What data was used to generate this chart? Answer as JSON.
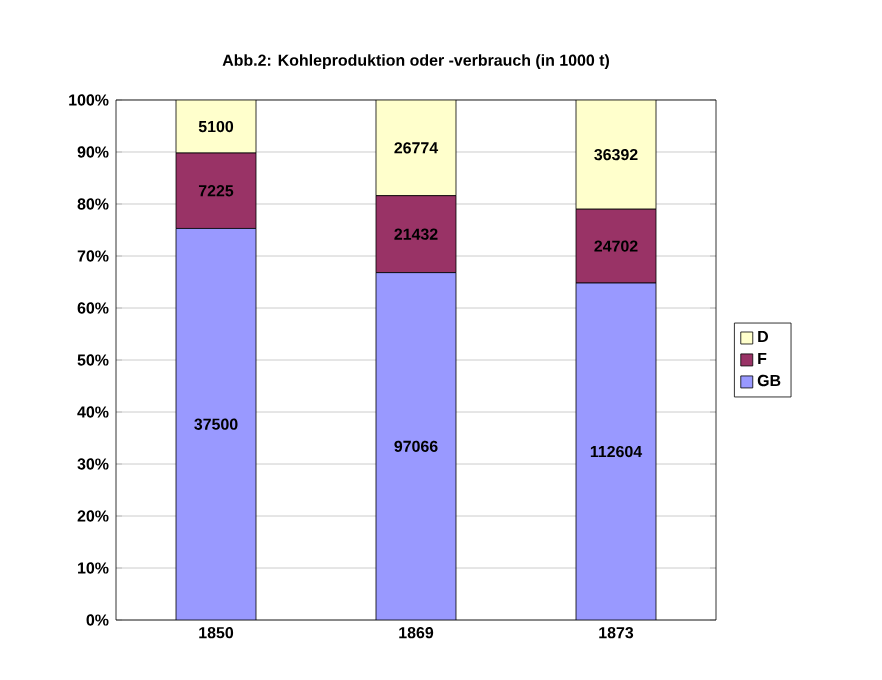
{
  "chart_data": {
    "type": "bar",
    "stacked": true,
    "title": "Abb.2: Kohleproduktion oder -verbrauch (in 1000 t)",
    "categories": [
      "1850",
      "1869",
      "1873"
    ],
    "series": [
      {
        "name": "GB",
        "color": "#9999ff",
        "values": [
          75.3,
          66.8,
          64.8
        ]
      },
      {
        "name": "F",
        "color": "#993366",
        "values": [
          14.5,
          14.8,
          14.2
        ]
      },
      {
        "name": "D",
        "color": "#ffffcc",
        "values": [
          10.2,
          18.4,
          21.0
        ]
      }
    ],
    "annotations": [
      "37500",
      "97066",
      "112604",
      "7225",
      "21432",
      "24702",
      "5100",
      "26774",
      "36392"
    ],
    "ylim": [
      0,
      100
    ],
    "yticks": [
      {
        "value": 0,
        "label": "0%"
      },
      {
        "value": 10,
        "label": "10%"
      },
      {
        "value": 20,
        "label": "20%"
      },
      {
        "value": 30,
        "label": "30%"
      },
      {
        "value": 40,
        "label": "40%"
      },
      {
        "value": 50,
        "label": "50%"
      },
      {
        "value": 60,
        "label": "60%"
      },
      {
        "value": 70,
        "label": "70%"
      },
      {
        "value": 80,
        "label": "80%"
      },
      {
        "value": 90,
        "label": "90%"
      },
      {
        "value": 100,
        "label": "100%"
      }
    ],
    "grid": "y",
    "legend": "right"
  }
}
